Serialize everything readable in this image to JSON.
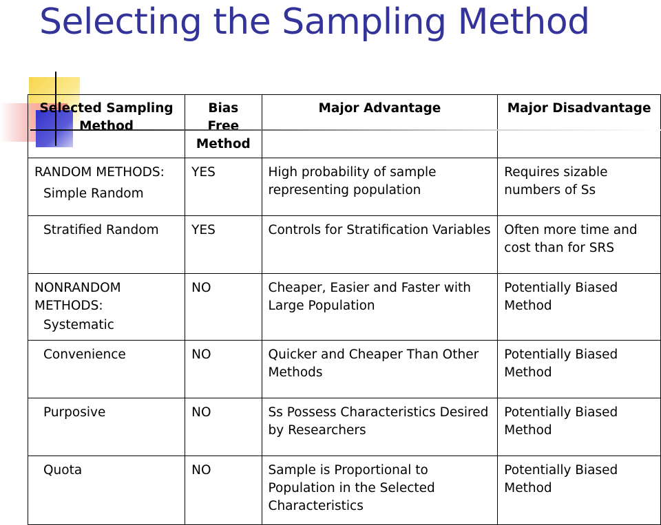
{
  "slide": {
    "title": "Selecting the Sampling Method"
  },
  "table": {
    "headers": [
      "Selected Sampling Method",
      "Bias Free Method",
      "Major Advantage",
      "Major Disadvantage"
    ],
    "rows": [
      {
        "group": "RANDOM METHODS:",
        "method": "Simple  Random",
        "bias_free": "YES",
        "advantage": "High probability of sample representing population",
        "disadvantage": "Requires sizable numbers of Ss"
      },
      {
        "group": "",
        "method": "Stratified Random",
        "bias_free": "YES",
        "advantage": "Controls for Stratification Variables",
        "disadvantage": "Often more time and cost than for SRS"
      },
      {
        "group": "NONRANDOM METHODS:",
        "method": "Systematic",
        "bias_free": "NO",
        "advantage": "Cheaper, Easier and Faster with Large Population",
        "disadvantage": "Potentially Biased Method"
      },
      {
        "group": "",
        "method": "Convenience",
        "bias_free": "NO",
        "advantage": "Quicker and Cheaper Than Other Methods",
        "disadvantage": "Potentially Biased Method"
      },
      {
        "group": "",
        "method": "Purposive",
        "bias_free": "NO",
        "advantage": "Ss Possess Characteristics Desired by Researchers",
        "disadvantage": "Potentially Biased Method"
      },
      {
        "group": "",
        "method": "Quota",
        "bias_free": "NO",
        "advantage": "Sample is Proportional to Population in the Selected Characteristics",
        "disadvantage": "Potentially Biased Method"
      }
    ]
  }
}
